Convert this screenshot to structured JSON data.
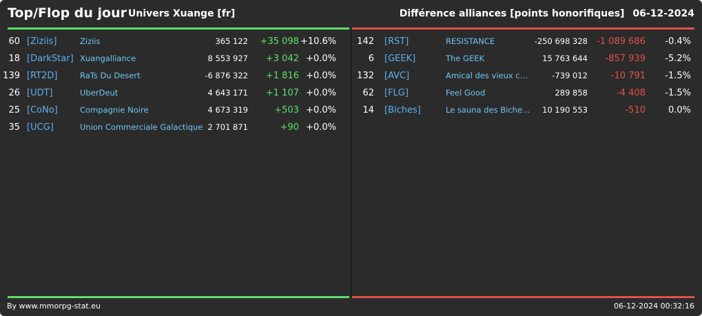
{
  "header": {
    "title": "Top/Flop du jour",
    "universe": "Univers Xuange [fr]",
    "subtitle": "Différence alliances [points honorifiques]",
    "date": "06-12-2024"
  },
  "colors": {
    "background": "#2b2b2b",
    "positive": "#5de068",
    "negative": "#e0524c",
    "tag": "#5cb0f0",
    "name": "#6ec6f6"
  },
  "top": [
    {
      "rank": "60",
      "tag": "[Ziziis]",
      "name": "Ziziis",
      "points": "365 122",
      "diff": "+35 098",
      "pct": "+10.6%"
    },
    {
      "rank": "18",
      "tag": "[DarkStar]",
      "name": "Xuangalliance",
      "points": "8 553 927",
      "diff": "+3 042",
      "pct": "+0.0%"
    },
    {
      "rank": "139",
      "tag": "[RT2D]",
      "name": "RaTs Du Desert",
      "points": "-6 876 322",
      "diff": "+1 816",
      "pct": "+0.0%"
    },
    {
      "rank": "26",
      "tag": "[UDT]",
      "name": "UberDeut",
      "points": "4 643 171",
      "diff": "+1 107",
      "pct": "+0.0%"
    },
    {
      "rank": "25",
      "tag": "[CoNo]",
      "name": "Compagnie Noire",
      "points": "4 673 319",
      "diff": "+503",
      "pct": "+0.0%"
    },
    {
      "rank": "35",
      "tag": "[UCG]",
      "name": "Union Commerciale Galactique",
      "points": "2 701 871",
      "diff": "+90",
      "pct": "+0.0%"
    }
  ],
  "flop": [
    {
      "rank": "142",
      "tag": "[RST]",
      "name": "RESISTANCE",
      "points": "-250 698 328",
      "diff": "-1 089 686",
      "pct": "-0.4%"
    },
    {
      "rank": "6",
      "tag": "[GEEK]",
      "name": "The GEEK",
      "points": "15 763 644",
      "diff": "-857 939",
      "pct": "-5.2%"
    },
    {
      "rank": "132",
      "tag": "[AVC]",
      "name": "Amical des vieux co...",
      "points": "-739 012",
      "diff": "-10 791",
      "pct": "-1.5%"
    },
    {
      "rank": "62",
      "tag": "[FLG]",
      "name": "Feel Good",
      "points": "289 858",
      "diff": "-4 408",
      "pct": "-1.5%"
    },
    {
      "rank": "14",
      "tag": "[Biches]",
      "name": "Le sauna des Biche...",
      "points": "10 190 553",
      "diff": "-510",
      "pct": "0.0%"
    }
  ],
  "footer": {
    "credit": "By www.mmorpg-stat.eu",
    "timestamp": "06-12-2024 00:32:16"
  }
}
